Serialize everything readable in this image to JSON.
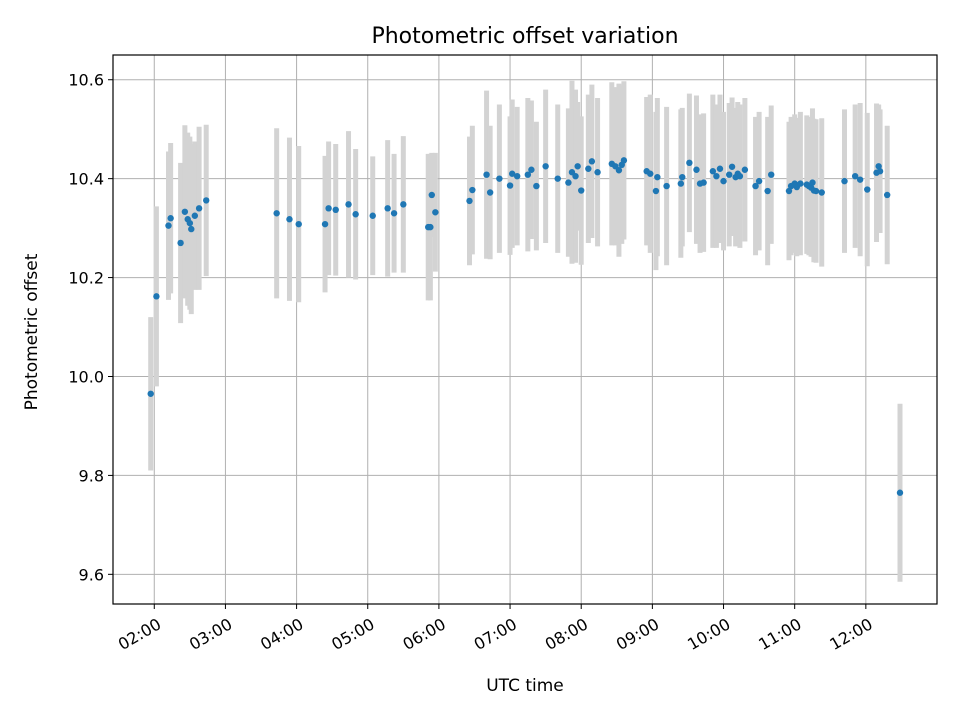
{
  "chart_data": {
    "type": "scatter",
    "title": "Photometric offset variation",
    "xlabel": "UTC time",
    "ylabel": "Photometric offset",
    "xlim": [
      1.42,
      13.0
    ],
    "ylim": [
      9.54,
      10.65
    ],
    "grid": true,
    "x_ticks": [
      2,
      3,
      4,
      5,
      6,
      7,
      8,
      9,
      10,
      11,
      12
    ],
    "x_tick_labels": [
      "02:00",
      "03:00",
      "04:00",
      "05:00",
      "06:00",
      "07:00",
      "08:00",
      "09:00",
      "10:00",
      "11:00",
      "12:00"
    ],
    "y_ticks": [
      9.6,
      9.8,
      10.0,
      10.2,
      10.4,
      10.6
    ],
    "y_tick_labels": [
      "9.6",
      "9.8",
      "10.0",
      "10.2",
      "10.4",
      "10.6"
    ],
    "marker_color": "#1f77b4",
    "errorbar_color": "#d3d3d3",
    "series": [
      {
        "name": "offset",
        "x": [
          1.95,
          2.03,
          2.2,
          2.23,
          2.37,
          2.43,
          2.47,
          2.5,
          2.52,
          2.57,
          2.63,
          2.73,
          3.72,
          3.9,
          4.03,
          4.4,
          4.45,
          4.55,
          4.73,
          4.83,
          5.07,
          5.28,
          5.37,
          5.5,
          5.85,
          5.88,
          5.9,
          5.95,
          6.43,
          6.47,
          6.67,
          6.72,
          6.85,
          7.0,
          7.03,
          7.1,
          7.25,
          7.3,
          7.37,
          7.5,
          7.67,
          7.82,
          7.87,
          7.92,
          7.95,
          8.0,
          8.1,
          8.15,
          8.23,
          8.43,
          8.48,
          8.53,
          8.57,
          8.6,
          8.92,
          8.97,
          9.05,
          9.07,
          9.2,
          9.4,
          9.42,
          9.52,
          9.62,
          9.67,
          9.72,
          9.85,
          9.9,
          9.95,
          10.0,
          10.08,
          10.12,
          10.17,
          10.2,
          10.23,
          10.3,
          10.45,
          10.5,
          10.62,
          10.67,
          10.92,
          10.95,
          11.0,
          11.03,
          11.08,
          11.17,
          11.2,
          11.23,
          11.25,
          11.27,
          11.3,
          11.38,
          11.7,
          11.85,
          11.92,
          12.02,
          12.15,
          12.18,
          12.2,
          12.3,
          12.48
        ],
        "y": [
          9.965,
          10.162,
          10.305,
          10.32,
          10.27,
          10.333,
          10.318,
          10.31,
          10.298,
          10.325,
          10.34,
          10.356,
          10.33,
          10.318,
          10.308,
          10.308,
          10.34,
          10.337,
          10.348,
          10.328,
          10.325,
          10.34,
          10.33,
          10.348,
          10.302,
          10.302,
          10.367,
          10.332,
          10.355,
          10.377,
          10.408,
          10.372,
          10.4,
          10.386,
          10.41,
          10.405,
          10.408,
          10.418,
          10.385,
          10.425,
          10.4,
          10.392,
          10.413,
          10.405,
          10.425,
          10.376,
          10.42,
          10.435,
          10.413,
          10.43,
          10.425,
          10.417,
          10.428,
          10.437,
          10.415,
          10.41,
          10.375,
          10.403,
          10.385,
          10.39,
          10.403,
          10.432,
          10.418,
          10.39,
          10.392,
          10.415,
          10.405,
          10.42,
          10.395,
          10.408,
          10.424,
          10.403,
          10.41,
          10.405,
          10.418,
          10.385,
          10.395,
          10.375,
          10.408,
          10.375,
          10.385,
          10.39,
          10.383,
          10.39,
          10.388,
          10.385,
          10.382,
          10.392,
          10.376,
          10.375,
          10.372,
          10.395,
          10.405,
          10.398,
          10.378,
          10.412,
          10.425,
          10.415,
          10.367,
          9.765
        ],
        "err": [
          0.155,
          0.182,
          0.15,
          0.152,
          0.162,
          0.175,
          0.175,
          0.175,
          0.172,
          0.15,
          0.165,
          0.153,
          0.172,
          0.165,
          0.158,
          0.138,
          0.135,
          0.133,
          0.148,
          0.132,
          0.12,
          0.138,
          0.12,
          0.138,
          0.148,
          0.148,
          0.085,
          0.12,
          0.13,
          0.13,
          0.17,
          0.135,
          0.15,
          0.14,
          0.15,
          0.14,
          0.155,
          0.14,
          0.13,
          0.155,
          0.15,
          0.15,
          0.185,
          0.175,
          0.13,
          0.15,
          0.15,
          0.155,
          0.15,
          0.165,
          0.16,
          0.175,
          0.16,
          0.16,
          0.15,
          0.16,
          0.16,
          0.16,
          0.16,
          0.15,
          0.14,
          0.14,
          0.15,
          0.14,
          0.14,
          0.155,
          0.145,
          0.15,
          0.14,
          0.145,
          0.14,
          0.14,
          0.145,
          0.145,
          0.145,
          0.14,
          0.14,
          0.15,
          0.14,
          0.14,
          0.14,
          0.14,
          0.14,
          0.145,
          0.14,
          0.14,
          0.14,
          0.15,
          0.145,
          0.145,
          0.15,
          0.145,
          0.145,
          0.155,
          0.155,
          0.14,
          0.125,
          0.125,
          0.14,
          0.18
        ]
      }
    ]
  }
}
